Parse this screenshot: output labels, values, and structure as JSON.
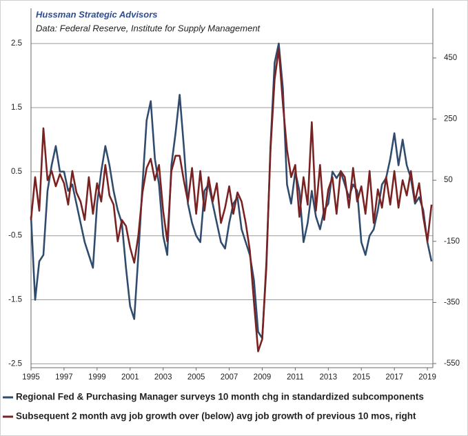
{
  "chart_data": {
    "type": "line",
    "title": "Hussman Strategic Advisors",
    "subtitle": "Data: Federal Reserve, Institute for Supply Management",
    "x": [
      1995,
      1995.25,
      1995.5,
      1995.75,
      1996,
      1996.25,
      1996.5,
      1996.75,
      1997,
      1997.25,
      1997.5,
      1997.75,
      1998,
      1998.25,
      1998.5,
      1998.75,
      1999,
      1999.25,
      1999.5,
      1999.75,
      2000,
      2000.25,
      2000.5,
      2000.75,
      2001,
      2001.25,
      2001.5,
      2001.75,
      2002,
      2002.25,
      2002.5,
      2002.75,
      2003,
      2003.25,
      2003.5,
      2003.75,
      2004,
      2004.25,
      2004.5,
      2004.75,
      2005,
      2005.25,
      2005.5,
      2005.75,
      2006,
      2006.25,
      2006.5,
      2006.75,
      2007,
      2007.25,
      2007.5,
      2007.75,
      2008,
      2008.25,
      2008.5,
      2008.75,
      2009,
      2009.25,
      2009.5,
      2009.75,
      2010,
      2010.25,
      2010.5,
      2010.75,
      2011,
      2011.25,
      2011.5,
      2011.75,
      2012,
      2012.25,
      2012.5,
      2012.75,
      2013,
      2013.25,
      2013.5,
      2013.75,
      2014,
      2014.25,
      2014.5,
      2014.75,
      2015,
      2015.25,
      2015.5,
      2015.75,
      2016,
      2016.25,
      2016.5,
      2016.75,
      2017,
      2017.25,
      2017.5,
      2017.75,
      2018,
      2018.25,
      2018.5,
      2018.75,
      2019,
      2019.25
    ],
    "series": [
      {
        "name": "Regional Fed & Purchasing Manager surveys 10 month chg in standardized subcomponents",
        "color": "#2f4b6e",
        "values": [
          -0.2,
          -1.5,
          -0.9,
          -0.8,
          0.2,
          0.6,
          0.9,
          0.5,
          0.5,
          0.2,
          0.3,
          0.0,
          -0.3,
          -0.6,
          -0.8,
          -1.0,
          0.0,
          0.5,
          0.9,
          0.6,
          0.2,
          -0.1,
          -0.3,
          -1.0,
          -1.6,
          -1.8,
          -0.8,
          0.3,
          1.3,
          1.6,
          0.7,
          0.3,
          -0.5,
          -0.8,
          0.6,
          1.1,
          1.7,
          0.9,
          0.0,
          -0.3,
          -0.5,
          -0.6,
          0.2,
          0.3,
          0.0,
          -0.3,
          -0.6,
          -0.7,
          -0.3,
          0.0,
          0.1,
          -0.4,
          -0.6,
          -0.8,
          -1.2,
          -2.0,
          -2.1,
          -1.0,
          0.9,
          2.2,
          2.5,
          1.8,
          0.3,
          0.0,
          0.5,
          0.2,
          -0.6,
          -0.3,
          0.2,
          -0.2,
          -0.4,
          -0.1,
          0.0,
          0.5,
          0.4,
          0.5,
          0.3,
          0.1,
          0.3,
          0.2,
          -0.6,
          -0.8,
          -0.5,
          -0.4,
          -0.1,
          0.3,
          0.4,
          0.7,
          1.1,
          0.6,
          1.0,
          0.6,
          0.4,
          0.0,
          0.1,
          -0.1,
          -0.6,
          -0.9
        ]
      },
      {
        "name": "Subsequent 2 month avg job growth over (below) avg job growth of previous 10 mos, right",
        "color": "#7a2222",
        "axis": "y2",
        "values": [
          -80,
          60,
          -50,
          220,
          50,
          80,
          30,
          70,
          40,
          -30,
          80,
          10,
          -20,
          -80,
          60,
          -60,
          40,
          -20,
          100,
          0,
          -30,
          -150,
          -80,
          -100,
          -170,
          -220,
          -130,
          10,
          90,
          120,
          50,
          100,
          -50,
          -150,
          80,
          130,
          130,
          50,
          -20,
          90,
          -60,
          80,
          -50,
          60,
          -20,
          40,
          -90,
          -40,
          30,
          -60,
          10,
          -20,
          -90,
          -180,
          -350,
          -510,
          -470,
          -220,
          150,
          380,
          480,
          300,
          150,
          60,
          100,
          -70,
          60,
          -30,
          240,
          -50,
          100,
          -80,
          20,
          60,
          -60,
          80,
          60,
          -40,
          90,
          -20,
          30,
          -60,
          80,
          -90,
          20,
          -40,
          60,
          -30,
          80,
          -40,
          50,
          0,
          80,
          -20,
          40,
          -70,
          -150,
          -30
        ]
      }
    ],
    "xlim": [
      1995,
      2019.33
    ],
    "xticks": [
      1995,
      1997,
      1999,
      2001,
      2003,
      2005,
      2007,
      2009,
      2011,
      2013,
      2015,
      2017,
      2019
    ],
    "ylim": [
      -2.56,
      3.05
    ],
    "yticks": [
      -2.5,
      -1.5,
      -0.5,
      0.5,
      1.5,
      2.5
    ],
    "y2lim": [
      -563.5,
      612.5
    ],
    "y2ticks": [
      -550,
      -350,
      -150,
      50,
      250,
      450
    ],
    "grid": true
  }
}
